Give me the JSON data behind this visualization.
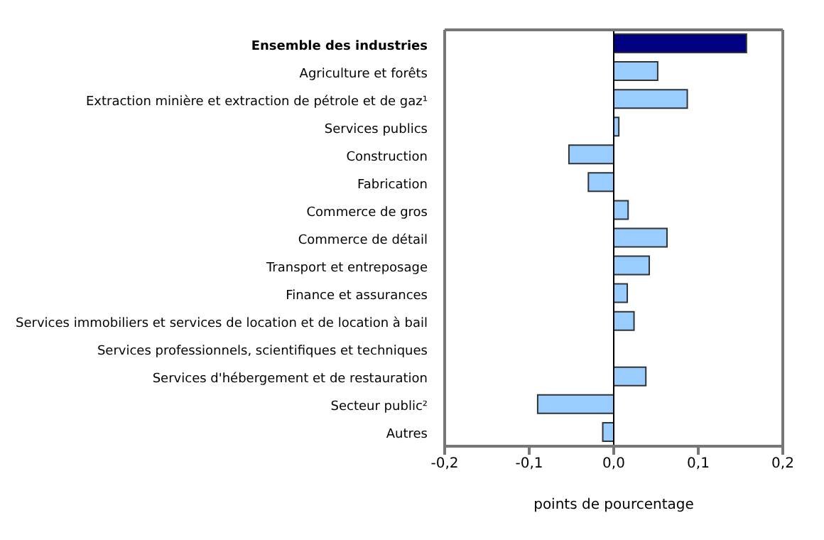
{
  "chart_data": {
    "type": "bar",
    "orientation": "horizontal",
    "xlabel": "points de pourcentage",
    "categories": [
      "Ensemble des industries",
      "Agriculture et forêts",
      "Extraction minière et extraction de pétrole et de gaz¹",
      "Services publics",
      "Construction",
      "Fabrication",
      "Commerce de gros",
      "Commerce de détail",
      "Transport et entreposage",
      "Finance et assurances",
      "Services immobiliers et services de location et de location à bail",
      "Services professionnels, scientifiques et techniques",
      "Services d'hébergement et de restauration",
      "Secteur public²",
      "Autres"
    ],
    "values": [
      0.157,
      0.052,
      0.087,
      0.006,
      -0.053,
      -0.03,
      0.017,
      0.063,
      0.042,
      0.016,
      0.024,
      0,
      0.038,
      -0.09,
      -0.013
    ],
    "colors": [
      "#000080",
      "#99ccff",
      "#99ccff",
      "#99ccff",
      "#99ccff",
      "#99ccff",
      "#99ccff",
      "#99ccff",
      "#99ccff",
      "#99ccff",
      "#99ccff",
      "#99ccff",
      "#99ccff",
      "#99ccff",
      "#99ccff"
    ],
    "xlim": [
      -0.2,
      0.2
    ],
    "xticks": [
      {
        "value": -0.2,
        "label": "-0,2"
      },
      {
        "value": -0.1,
        "label": "-0,1"
      },
      {
        "value": 0,
        "label": "0,0"
      },
      {
        "value": 0.1,
        "label": "0,1"
      },
      {
        "value": 0.2,
        "label": "0,2"
      }
    ],
    "ref_lines": [
      {
        "axis": "x",
        "value": 0,
        "color": "#000000"
      }
    ],
    "grid": false
  }
}
